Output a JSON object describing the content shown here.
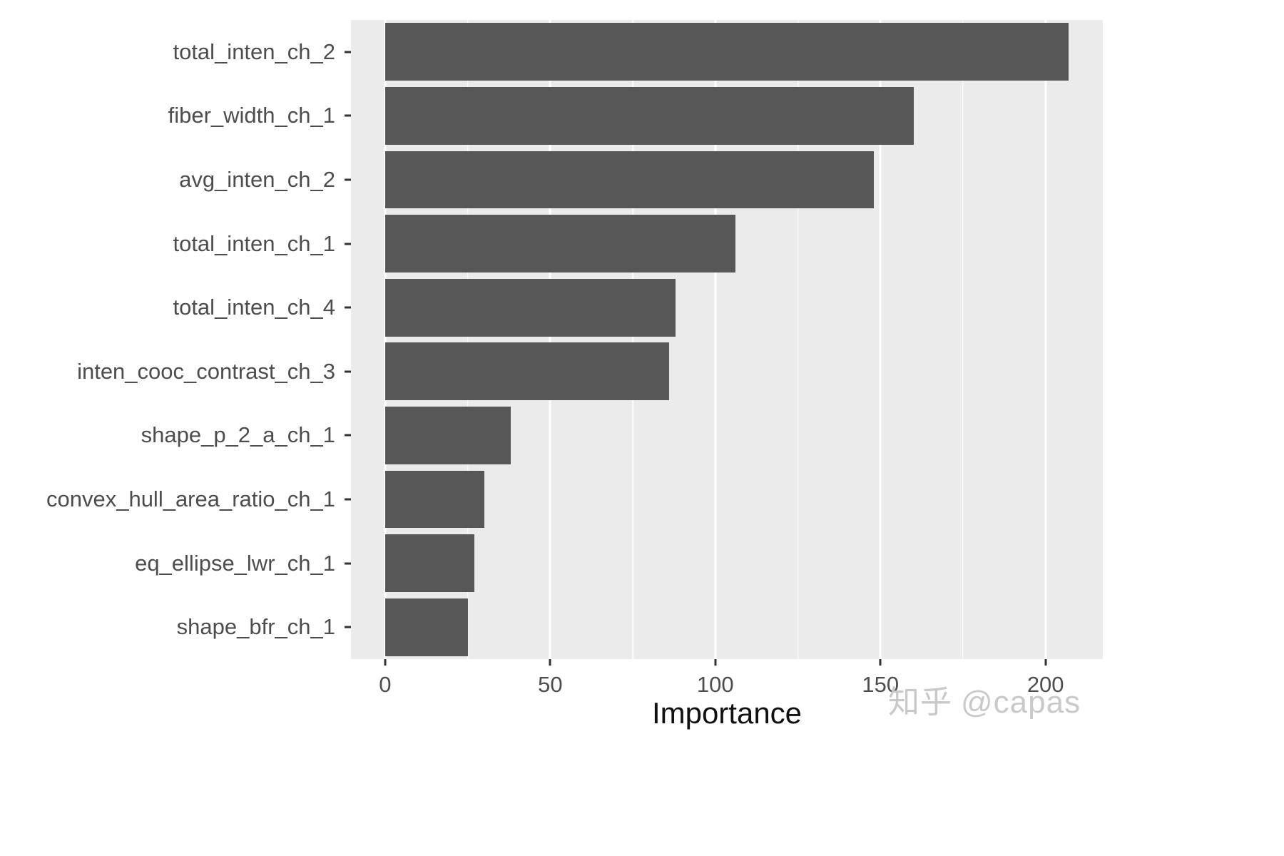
{
  "chart_data": {
    "type": "bar",
    "orientation": "horizontal",
    "title": "",
    "xlabel": "Importance",
    "ylabel": "",
    "categories": [
      "total_inten_ch_2",
      "fiber_width_ch_1",
      "avg_inten_ch_2",
      "total_inten_ch_1",
      "total_inten_ch_4",
      "inten_cooc_contrast_ch_3",
      "shape_p_2_a_ch_1",
      "convex_hull_area_ratio_ch_1",
      "eq_ellipse_lwr_ch_1",
      "shape_bfr_ch_1"
    ],
    "values": [
      207,
      160,
      148,
      106,
      88,
      86,
      38,
      30,
      27,
      25
    ],
    "x_ticks": [
      0,
      50,
      100,
      150,
      200
    ],
    "x_minor_ticks": [
      25,
      75,
      125,
      175
    ],
    "xlim": [
      -10.35,
      217.35
    ],
    "bar_color": "#575757",
    "panel_bg": "#EBEBEB",
    "grid_color": "#FFFFFF",
    "grid": "on",
    "legend": "none"
  },
  "watermark": {
    "brand": "知乎",
    "handle": "@capas"
  }
}
